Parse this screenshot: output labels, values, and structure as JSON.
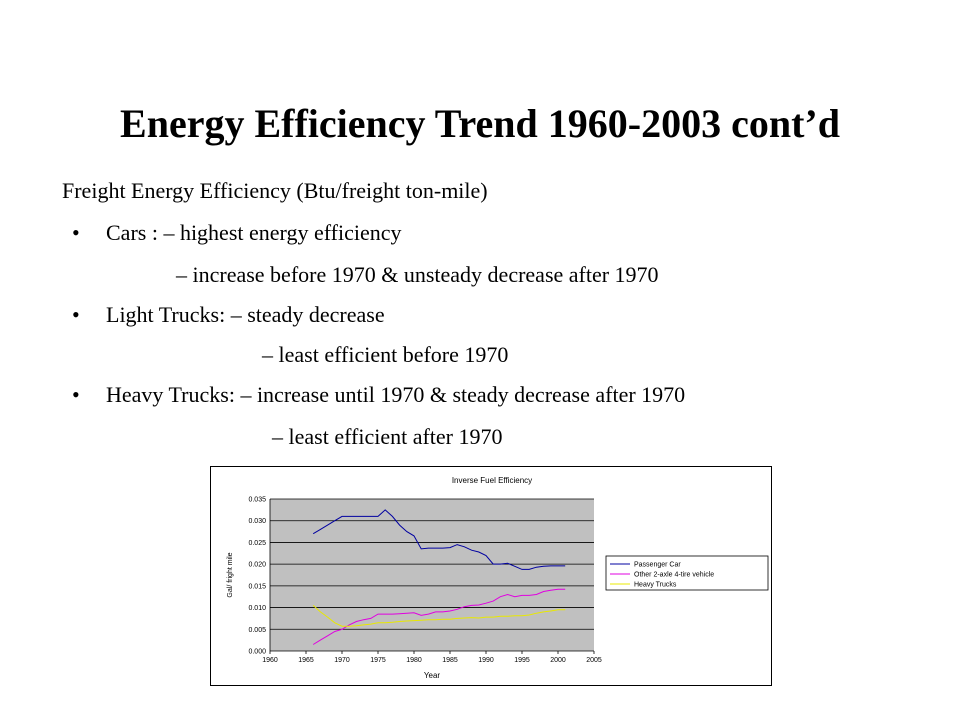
{
  "slide": {
    "title": "Energy Efficiency Trend 1960-2003 cont’d",
    "subtitle": "Freight Energy Efficiency (Btu/freight ton-mile)",
    "bullets": [
      {
        "symbol": "•",
        "line1": "Cars : – highest energy efficiency",
        "line2": "– increase before 1970 & unsteady decrease after 1970"
      },
      {
        "symbol": "•",
        "line1": "Light Trucks: – steady decrease",
        "line2": "– least efficient before 1970"
      },
      {
        "symbol": "•",
        "line1": "Heavy Trucks: – increase until 1970 & steady decrease after 1970",
        "line2": "– least efficient after 1970"
      }
    ]
  },
  "chart_data": {
    "type": "line",
    "title": "Inverse Fuel Efficiency",
    "xlabel": "Year",
    "ylabel": "Gal/ fright mile",
    "xlim": [
      1960,
      2005
    ],
    "ylim": [
      0.0,
      0.035
    ],
    "xticks": [
      "1960",
      "1965",
      "1970",
      "1975",
      "1980",
      "1985",
      "1990",
      "1995",
      "2000",
      "2005"
    ],
    "yticks": [
      "0.000",
      "0.005",
      "0.010",
      "0.015",
      "0.020",
      "0.025",
      "0.030",
      "0.035"
    ],
    "grid": true,
    "legend_position": "right",
    "series": [
      {
        "name": "Passenger Car",
        "color": "#0000a0",
        "x": [
          1966,
          1967,
          1968,
          1969,
          1970,
          1971,
          1972,
          1973,
          1974,
          1975,
          1976,
          1977,
          1978,
          1979,
          1980,
          1981,
          1982,
          1983,
          1984,
          1985,
          1986,
          1987,
          1988,
          1989,
          1990,
          1991,
          1992,
          1993,
          1994,
          1995,
          1996,
          1997,
          1998,
          1999,
          2000,
          2001
        ],
        "y": [
          0.027,
          0.028,
          0.029,
          0.03,
          0.031,
          0.031,
          0.031,
          0.031,
          0.031,
          0.031,
          0.0325,
          0.031,
          0.029,
          0.0275,
          0.0265,
          0.0235,
          0.0237,
          0.0237,
          0.0237,
          0.0238,
          0.0245,
          0.024,
          0.0232,
          0.0228,
          0.022,
          0.02,
          0.02,
          0.0202,
          0.0195,
          0.0188,
          0.0188,
          0.0193,
          0.0195,
          0.0196,
          0.0196,
          0.0196
        ]
      },
      {
        "name": "Other 2-axle 4-tire vehicle",
        "color": "#e000e0",
        "x": [
          1966,
          1967,
          1968,
          1969,
          1970,
          1971,
          1972,
          1973,
          1974,
          1975,
          1976,
          1977,
          1978,
          1979,
          1980,
          1981,
          1982,
          1983,
          1984,
          1985,
          1986,
          1987,
          1988,
          1989,
          1990,
          1991,
          1992,
          1993,
          1994,
          1995,
          1996,
          1997,
          1998,
          1999,
          2000,
          2001
        ],
        "y": [
          0.0015,
          0.0025,
          0.0035,
          0.0045,
          0.005,
          0.006,
          0.0068,
          0.0072,
          0.0075,
          0.0085,
          0.0085,
          0.0085,
          0.0086,
          0.0087,
          0.0088,
          0.0082,
          0.0085,
          0.009,
          0.009,
          0.0092,
          0.0096,
          0.0102,
          0.0105,
          0.0106,
          0.011,
          0.0115,
          0.0125,
          0.013,
          0.0125,
          0.0128,
          0.0128,
          0.013,
          0.0137,
          0.014,
          0.0142,
          0.0142
        ]
      },
      {
        "name": "Heavy Trucks",
        "color": "#e8e800",
        "x": [
          1966,
          1967,
          1968,
          1969,
          1970,
          1971,
          1972,
          1973,
          1974,
          1975,
          1976,
          1977,
          1978,
          1979,
          1980,
          1981,
          1982,
          1983,
          1984,
          1985,
          1986,
          1987,
          1988,
          1989,
          1990,
          1991,
          1992,
          1993,
          1994,
          1995,
          1996,
          1997,
          1998,
          1999,
          2000,
          2001
        ],
        "y": [
          0.0105,
          0.009,
          0.0078,
          0.0065,
          0.0057,
          0.0057,
          0.0058,
          0.006,
          0.0062,
          0.0065,
          0.0065,
          0.0066,
          0.0068,
          0.0069,
          0.007,
          0.0071,
          0.0072,
          0.0072,
          0.0073,
          0.0073,
          0.0075,
          0.0076,
          0.0077,
          0.0076,
          0.0078,
          0.0078,
          0.008,
          0.008,
          0.0081,
          0.0081,
          0.0083,
          0.0087,
          0.009,
          0.0092,
          0.0095,
          0.0095
        ]
      }
    ]
  }
}
